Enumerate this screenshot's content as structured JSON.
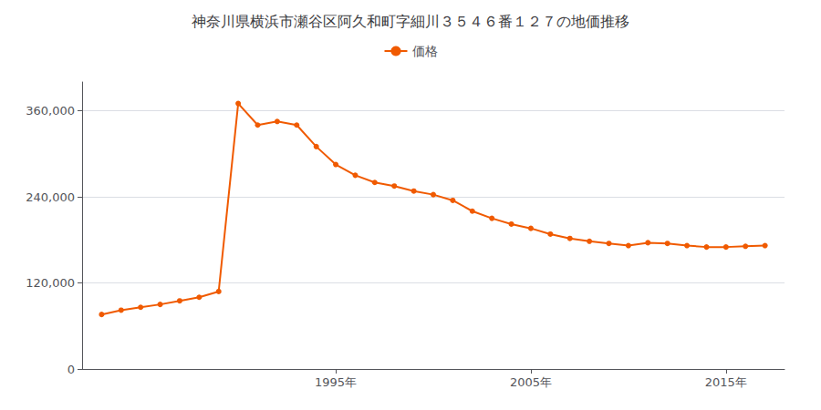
{
  "chart_data": {
    "type": "line",
    "title": "神奈川県横浜市瀬谷区阿久和町字細川３５４６番１２７の地価推移",
    "x": [
      1983,
      1984,
      1985,
      1986,
      1987,
      1988,
      1989,
      1990,
      1991,
      1992,
      1993,
      1994,
      1995,
      1996,
      1997,
      1998,
      1999,
      2000,
      2001,
      2002,
      2003,
      2004,
      2005,
      2006,
      2007,
      2008,
      2009,
      2010,
      2011,
      2012,
      2013,
      2014,
      2015,
      2016,
      2017
    ],
    "series": [
      {
        "name": "価格",
        "color": "#f05a00",
        "marker": "circle",
        "values": [
          76000,
          82000,
          86000,
          90000,
          95000,
          100000,
          108000,
          370000,
          340000,
          345000,
          340000,
          310000,
          285000,
          270000,
          260000,
          255000,
          248000,
          243000,
          235000,
          220000,
          210000,
          202000,
          196000,
          188000,
          182000,
          178000,
          175000,
          172000,
          176000,
          175000,
          172000,
          170000,
          170000,
          171000,
          172000
        ]
      }
    ],
    "xlim": [
      1982,
      2018
    ],
    "xticks": [
      {
        "value": 1995,
        "label": "1995年"
      },
      {
        "value": 2005,
        "label": "2005年"
      },
      {
        "value": 2015,
        "label": "2015年"
      }
    ],
    "ylim": [
      0,
      400000
    ],
    "yticks": [
      0,
      {
        "value": 120000,
        "label": "120,000"
      },
      {
        "value": 240000,
        "label": "240,000"
      },
      {
        "value": 360000,
        "label": "360,000"
      }
    ],
    "grid": true,
    "legend": "top"
  }
}
